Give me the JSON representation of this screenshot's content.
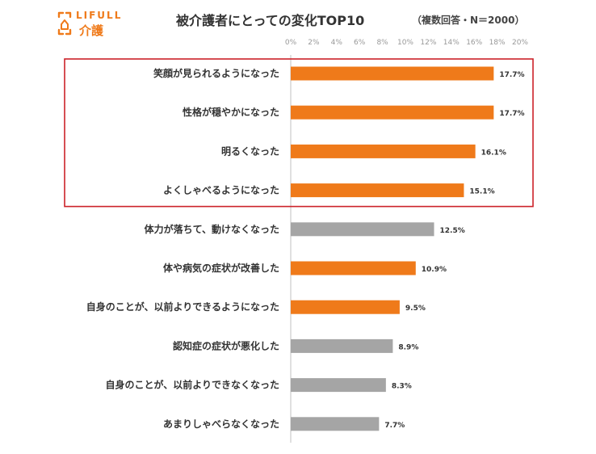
{
  "logo": {
    "wordmark": "LIFULL",
    "service": "介護"
  },
  "colors": {
    "orange": "#ef7a1a",
    "gray": "#a5a5a5",
    "highlight_border": "#cc2229",
    "axis": "#cccccc",
    "logo_orange": "#ef7a1a"
  },
  "chart_data": {
    "type": "bar",
    "orientation": "horizontal",
    "title": "被介護者にとっての変化TOP10",
    "subtitle": "（複数回答・N＝2000）",
    "xlabel": "",
    "ylabel": "",
    "xlim": [
      0,
      20
    ],
    "x_ticks": [
      "0%",
      "2%",
      "4%",
      "6%",
      "8%",
      "10%",
      "12%",
      "14%",
      "16%",
      "18%",
      "20%"
    ],
    "tick_step": 2,
    "grid": false,
    "legend": "none",
    "categories": [
      "笑顔が見られるようになった",
      "性格が穏やかになった",
      "明るくなった",
      "よくしゃべるようになった",
      "体力が落ちて、動けなくなった",
      "体や病気の症状が改善した",
      "自身のことが、以前よりできるようになった",
      "認知症の症状が悪化した",
      "自身のことが、以前よりできなくなった",
      "あまりしゃべらなくなった"
    ],
    "values": [
      17.7,
      17.7,
      16.1,
      15.1,
      12.5,
      10.9,
      9.5,
      8.9,
      8.3,
      7.7
    ],
    "value_labels": [
      "17.7%",
      "17.7%",
      "16.1%",
      "15.1%",
      "12.5%",
      "10.9%",
      "9.5%",
      "8.9%",
      "8.3%",
      "7.7%"
    ],
    "bar_colors": [
      "orange",
      "orange",
      "orange",
      "orange",
      "gray",
      "orange",
      "orange",
      "gray",
      "gray",
      "gray"
    ],
    "highlight_range": [
      0,
      3
    ]
  }
}
